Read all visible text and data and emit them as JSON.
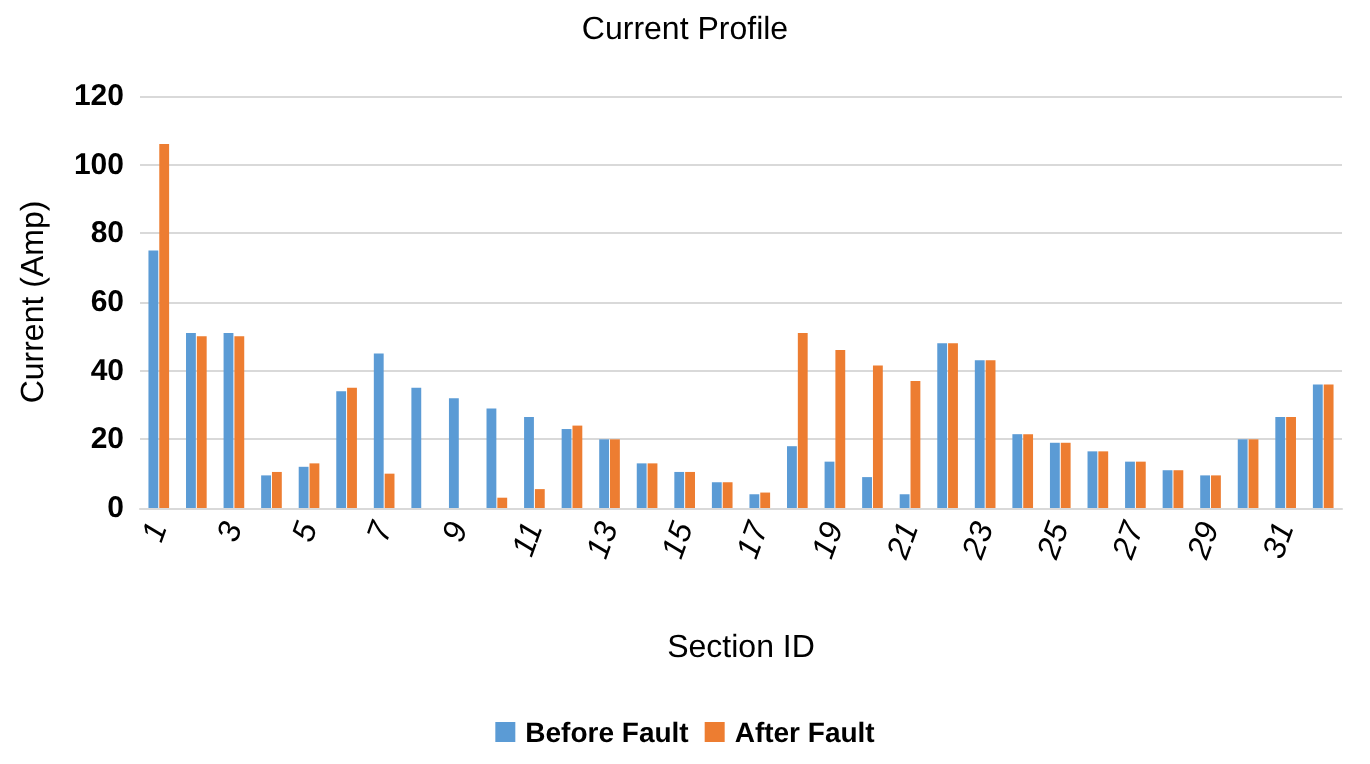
{
  "chart_data": {
    "type": "bar",
    "title": "Current Profile",
    "xlabel": "Section ID",
    "ylabel": "Current (Amp)",
    "categories": [
      "1",
      null,
      "3",
      null,
      "5",
      null,
      "7",
      null,
      "9",
      null,
      "11",
      null,
      "13",
      null,
      "15",
      null,
      "17",
      null,
      "19",
      null,
      "21",
      null,
      "23",
      null,
      "25",
      null,
      "27",
      null,
      "29",
      null,
      "31",
      null
    ],
    "series": [
      {
        "name": "Before Fault",
        "color": "#5b9bd5",
        "values": [
          75,
          51,
          51,
          9.5,
          12,
          34,
          45,
          35,
          32,
          29,
          26.5,
          23,
          20,
          13,
          10.5,
          7.5,
          4,
          18,
          13.5,
          9,
          4,
          48,
          43,
          21.5,
          19,
          16.5,
          13.5,
          11,
          9.5,
          20,
          26.5,
          36
        ]
      },
      {
        "name": "After Fault",
        "color": "#ed7d31",
        "values": [
          106,
          50,
          50,
          10.5,
          13,
          35,
          10,
          0,
          0,
          3,
          5.5,
          24,
          20,
          13,
          10.5,
          7.5,
          4.5,
          51,
          46,
          41.5,
          37,
          48,
          43,
          21.5,
          19,
          16.5,
          13.5,
          11,
          9.5,
          20,
          26.5,
          36
        ]
      }
    ],
    "ylim": [
      0,
      120
    ],
    "yticks": [
      0,
      20,
      40,
      60,
      80,
      100,
      120
    ],
    "grid": "y",
    "legend": "bottom"
  }
}
